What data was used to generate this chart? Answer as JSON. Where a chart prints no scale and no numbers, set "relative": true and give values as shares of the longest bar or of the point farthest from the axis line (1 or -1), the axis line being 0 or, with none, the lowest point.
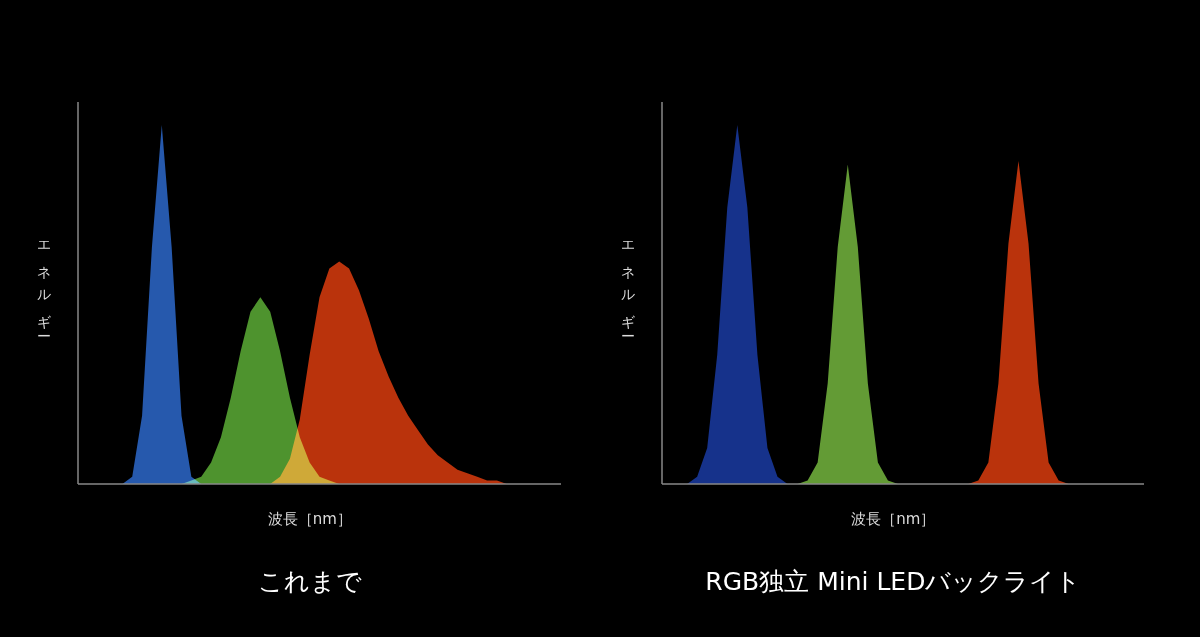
{
  "chart_data": [
    {
      "type": "area",
      "relative": true,
      "title": "これまで",
      "xlabel": "波長［nm］",
      "ylabel": "エネルギー",
      "categories": [
        null,
        null,
        null,
        null,
        null,
        null,
        null,
        null,
        null,
        null,
        null,
        null,
        null,
        null,
        null,
        null,
        null,
        null,
        null,
        null,
        null,
        null,
        null,
        null,
        null,
        null,
        null,
        null,
        null,
        null,
        null,
        null,
        null,
        null,
        null,
        null,
        null,
        null,
        null,
        null,
        null,
        null,
        null,
        null,
        null,
        null,
        null,
        null,
        null
      ],
      "series": [
        {
          "color": "#2f6fd8",
          "values": [
            0,
            0,
            0,
            0,
            0,
            0.02,
            0.19,
            0.66,
            1,
            0.66,
            0.19,
            0.02,
            0,
            0,
            0,
            0,
            0,
            0,
            0,
            0,
            0,
            0,
            0,
            0,
            0,
            0,
            0,
            0,
            0,
            0,
            0,
            0,
            0,
            0,
            0,
            0,
            0,
            0,
            0,
            0,
            0,
            0,
            0,
            0,
            0,
            0,
            0,
            0,
            0
          ]
        },
        {
          "color": "#62b83a",
          "values": [
            0,
            0,
            0,
            0,
            0,
            0,
            0,
            0,
            0,
            0,
            0,
            0.01,
            0.02,
            0.06,
            0.13,
            0.24,
            0.37,
            0.48,
            0.52,
            0.48,
            0.37,
            0.24,
            0.13,
            0.06,
            0.02,
            0.01,
            0,
            0,
            0,
            0,
            0,
            0,
            0,
            0,
            0,
            0,
            0,
            0,
            0,
            0,
            0,
            0,
            0,
            0,
            0,
            0,
            0,
            0,
            0
          ]
        },
        {
          "color": "#e8400f",
          "values": [
            0,
            0,
            0,
            0,
            0,
            0,
            0,
            0,
            0,
            0,
            0,
            0,
            0,
            0,
            0,
            0,
            0,
            0,
            0,
            0,
            0.02,
            0.07,
            0.18,
            0.36,
            0.52,
            0.6,
            0.62,
            0.6,
            0.54,
            0.46,
            0.37,
            0.3,
            0.24,
            0.19,
            0.15,
            0.11,
            0.08,
            0.06,
            0.04,
            0.03,
            0.02,
            0.01,
            0.01,
            0,
            0,
            0,
            0,
            0,
            0
          ]
        }
      ]
    },
    {
      "type": "area",
      "relative": true,
      "title": "RGB独立 Mini LEDバックライト",
      "xlabel": "波長［nm］",
      "ylabel": "エネルギー",
      "categories": [
        null,
        null,
        null,
        null,
        null,
        null,
        null,
        null,
        null,
        null,
        null,
        null,
        null,
        null,
        null,
        null,
        null,
        null,
        null,
        null,
        null,
        null,
        null,
        null,
        null,
        null,
        null,
        null,
        null,
        null,
        null,
        null,
        null,
        null,
        null,
        null,
        null,
        null,
        null,
        null,
        null,
        null,
        null,
        null,
        null,
        null,
        null,
        null
      ],
      "series": [
        {
          "color": "#1c3fae",
          "values": [
            0,
            0,
            0,
            0.02,
            0.1,
            0.36,
            0.77,
            1,
            0.77,
            0.36,
            0.1,
            0.02,
            0,
            0,
            0,
            0,
            0,
            0,
            0,
            0,
            0,
            0,
            0,
            0,
            0,
            0,
            0,
            0,
            0,
            0,
            0,
            0,
            0,
            0,
            0,
            0,
            0,
            0,
            0,
            0,
            0,
            0,
            0,
            0,
            0,
            0,
            0,
            0
          ]
        },
        {
          "color": "#7cc242",
          "values": [
            0,
            0,
            0,
            0,
            0,
            0,
            0,
            0,
            0,
            0,
            0,
            0,
            0,
            0,
            0.01,
            0.06,
            0.28,
            0.66,
            0.89,
            0.66,
            0.28,
            0.06,
            0.01,
            0,
            0,
            0,
            0,
            0,
            0,
            0,
            0,
            0,
            0,
            0,
            0,
            0,
            0,
            0,
            0,
            0,
            0,
            0,
            0,
            0,
            0,
            0,
            0,
            0
          ]
        },
        {
          "color": "#e8400f",
          "values": [
            0,
            0,
            0,
            0,
            0,
            0,
            0,
            0,
            0,
            0,
            0,
            0,
            0,
            0,
            0,
            0,
            0,
            0,
            0,
            0,
            0,
            0,
            0,
            0,
            0,
            0,
            0,
            0,
            0,
            0,
            0,
            0.01,
            0.06,
            0.28,
            0.67,
            0.9,
            0.67,
            0.28,
            0.06,
            0.01,
            0,
            0,
            0,
            0,
            0,
            0,
            0,
            0
          ]
        }
      ]
    }
  ]
}
